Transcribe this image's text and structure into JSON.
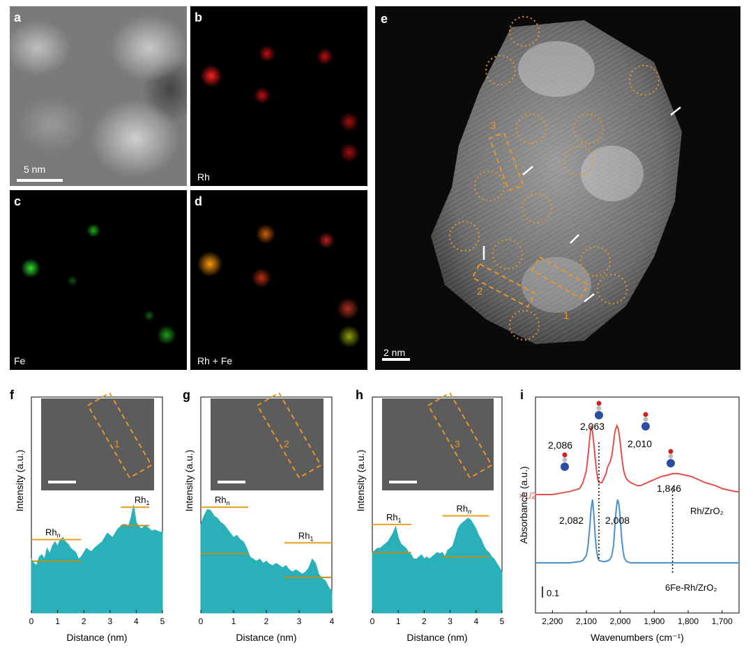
{
  "panels": {
    "a": {
      "label": "a",
      "scale_text": "5 nm"
    },
    "b": {
      "label": "b",
      "caption": "Rh"
    },
    "c": {
      "label": "c",
      "caption": "Fe"
    },
    "d": {
      "label": "d",
      "caption": "Rh + Fe"
    },
    "e": {
      "label": "e",
      "scale_text": "2 nm",
      "region_labels": [
        "1",
        "2",
        "3"
      ]
    },
    "f": {
      "label": "f"
    },
    "g": {
      "label": "g"
    },
    "h": {
      "label": "h"
    },
    "i": {
      "label": "i"
    }
  },
  "colors": {
    "profile_fill": "#2ab0b8",
    "level_line": "#e8a020",
    "dash_orange": "#e8962a",
    "rh_curve": "#e0504a",
    "fe_rh_curve": "#4a8fd0",
    "rh_map": "#e01010",
    "fe_map": "#20c020"
  },
  "chart_data": [
    {
      "id": "f",
      "type": "area",
      "xlabel": "Distance (nm)",
      "ylabel": "Intensity (a.u.)",
      "xlim": [
        0,
        5
      ],
      "xticks": [
        "0",
        "1",
        "2",
        "3",
        "4",
        "5"
      ],
      "inset_region": "1",
      "annotations": [
        {
          "text": "Rh",
          "sub": "n"
        },
        {
          "text": "Rh",
          "sub": "1"
        }
      ],
      "x": [
        0,
        0.1,
        0.2,
        0.3,
        0.4,
        0.5,
        0.6,
        0.7,
        0.8,
        0.9,
        1.0,
        1.1,
        1.2,
        1.3,
        1.4,
        1.5,
        1.6,
        1.7,
        1.8,
        1.9,
        2.0,
        2.1,
        2.2,
        2.3,
        2.4,
        2.5,
        2.6,
        2.7,
        2.8,
        2.9,
        3.0,
        3.1,
        3.2,
        3.3,
        3.4,
        3.5,
        3.6,
        3.7,
        3.8,
        3.9,
        4.0,
        4.1,
        4.2,
        4.3,
        4.4,
        4.5,
        4.6,
        4.7,
        4.8,
        4.9,
        5.0
      ],
      "y": [
        0.5,
        0.46,
        0.44,
        0.52,
        0.54,
        0.5,
        0.6,
        0.55,
        0.62,
        0.66,
        0.62,
        0.68,
        0.7,
        0.66,
        0.64,
        0.6,
        0.58,
        0.56,
        0.5,
        0.52,
        0.56,
        0.6,
        0.58,
        0.57,
        0.6,
        0.62,
        0.64,
        0.66,
        0.7,
        0.74,
        0.72,
        0.7,
        0.74,
        0.78,
        0.8,
        0.82,
        0.82,
        0.8,
        0.88,
        1.0,
        0.84,
        0.8,
        0.78,
        0.8,
        0.8,
        0.78,
        0.76,
        0.77,
        0.76,
        0.75,
        0.75
      ],
      "levels": [
        {
          "x0": 0,
          "x1": 1.9,
          "hi": 0.68,
          "lo": 0.48
        },
        {
          "x0": 3.4,
          "x1": 4.5,
          "hi": 0.98,
          "lo": 0.81
        }
      ]
    },
    {
      "id": "g",
      "type": "area",
      "xlabel": "Distance (nm)",
      "ylabel": "Intensity (a.u.)",
      "xlim": [
        0,
        4
      ],
      "xticks": [
        "0",
        "1",
        "2",
        "3",
        "4"
      ],
      "inset_region": "2",
      "annotations": [
        {
          "text": "Rh",
          "sub": "n"
        },
        {
          "text": "Rh",
          "sub": "1"
        }
      ],
      "x": [
        0,
        0.1,
        0.2,
        0.3,
        0.4,
        0.5,
        0.6,
        0.7,
        0.8,
        0.9,
        1.0,
        1.1,
        1.2,
        1.3,
        1.4,
        1.5,
        1.6,
        1.7,
        1.8,
        1.9,
        2.0,
        2.1,
        2.2,
        2.3,
        2.4,
        2.5,
        2.6,
        2.7,
        2.8,
        2.9,
        3.0,
        3.1,
        3.2,
        3.3,
        3.4,
        3.5,
        3.6,
        3.7,
        3.8,
        3.9,
        4.0
      ],
      "y": [
        0.82,
        0.9,
        0.96,
        0.95,
        0.9,
        0.88,
        0.84,
        0.82,
        0.78,
        0.74,
        0.7,
        0.72,
        0.68,
        0.66,
        0.6,
        0.52,
        0.5,
        0.48,
        0.5,
        0.46,
        0.48,
        0.45,
        0.44,
        0.46,
        0.44,
        0.42,
        0.44,
        0.4,
        0.38,
        0.4,
        0.38,
        0.36,
        0.38,
        0.42,
        0.5,
        0.46,
        0.36,
        0.32,
        0.3,
        0.24,
        0.2
      ],
      "levels": [
        {
          "x0": 0,
          "x1": 1.45,
          "hi": 0.98,
          "lo": 0.55
        },
        {
          "x0": 2.55,
          "x1": 4.0,
          "hi": 0.65,
          "lo": 0.33
        }
      ]
    },
    {
      "id": "h",
      "type": "area",
      "xlabel": "Distance (nm)",
      "ylabel": "Intensity (a.u.)",
      "xlim": [
        0,
        5
      ],
      "xticks": [
        "0",
        "1",
        "2",
        "3",
        "4",
        "5"
      ],
      "inset_region": "3",
      "annotations": [
        {
          "text": "Rh",
          "sub": "1"
        },
        {
          "text": "Rh",
          "sub": "n"
        }
      ],
      "x": [
        0,
        0.1,
        0.2,
        0.3,
        0.4,
        0.5,
        0.6,
        0.7,
        0.8,
        0.9,
        1.0,
        1.1,
        1.2,
        1.3,
        1.4,
        1.5,
        1.6,
        1.7,
        1.8,
        1.9,
        2.0,
        2.1,
        2.2,
        2.3,
        2.4,
        2.5,
        2.6,
        2.7,
        2.8,
        2.9,
        3.0,
        3.1,
        3.2,
        3.3,
        3.4,
        3.5,
        3.6,
        3.7,
        3.8,
        3.9,
        4.0,
        4.1,
        4.2,
        4.3,
        4.4,
        4.5,
        4.6,
        4.7,
        4.8,
        4.9,
        5.0
      ],
      "y": [
        0.56,
        0.58,
        0.6,
        0.6,
        0.62,
        0.64,
        0.66,
        0.7,
        0.74,
        0.8,
        0.7,
        0.64,
        0.62,
        0.6,
        0.56,
        0.54,
        0.5,
        0.5,
        0.52,
        0.54,
        0.5,
        0.52,
        0.5,
        0.52,
        0.54,
        0.56,
        0.55,
        0.56,
        0.52,
        0.58,
        0.6,
        0.62,
        0.7,
        0.78,
        0.82,
        0.84,
        0.86,
        0.88,
        0.86,
        0.82,
        0.78,
        0.72,
        0.68,
        0.62,
        0.58,
        0.56,
        0.52,
        0.5,
        0.46,
        0.42,
        0.38
      ],
      "levels": [
        {
          "x0": 0,
          "x1": 1.5,
          "hi": 0.82,
          "lo": 0.56
        },
        {
          "x0": 2.7,
          "x1": 4.5,
          "hi": 0.9,
          "lo": 0.52
        }
      ]
    },
    {
      "id": "i",
      "type": "line",
      "xlabel": "Wavenumbers (cm⁻¹)",
      "ylabel": "Absorbance (a.u.)",
      "xlim": [
        2250,
        1650
      ],
      "xticks": [
        "2,200",
        "2,100",
        "2,000",
        "1,900",
        "1,800",
        "1,700"
      ],
      "scale_bar": "0.1",
      "multiplier": "×1/2",
      "series": [
        {
          "name": "Rh/ZrO₂",
          "peaks": [
            "2,086",
            "2,063",
            "2,010",
            "1,846"
          ],
          "x": [
            2250,
            2200,
            2150,
            2120,
            2110,
            2100,
            2095,
            2090,
            2086,
            2082,
            2078,
            2074,
            2070,
            2066,
            2063,
            2058,
            2054,
            2050,
            2046,
            2042,
            2038,
            2034,
            2030,
            2025,
            2020,
            2016,
            2010,
            2006,
            2002,
            1998,
            1994,
            1990,
            1985,
            1980,
            1970,
            1960,
            1950,
            1940,
            1930,
            1920,
            1900,
            1880,
            1860,
            1846,
            1830,
            1810,
            1790,
            1770,
            1750,
            1720,
            1700,
            1680,
            1660,
            1650
          ],
          "y": [
            0.0,
            0.0,
            0.01,
            0.02,
            0.04,
            0.08,
            0.13,
            0.19,
            0.23,
            0.21,
            0.17,
            0.12,
            0.08,
            0.05,
            0.04,
            0.04,
            0.04,
            0.05,
            0.06,
            0.07,
            0.09,
            0.1,
            0.11,
            0.13,
            0.17,
            0.21,
            0.23,
            0.22,
            0.19,
            0.15,
            0.11,
            0.08,
            0.06,
            0.05,
            0.04,
            0.035,
            0.03,
            0.03,
            0.035,
            0.04,
            0.05,
            0.06,
            0.065,
            0.07,
            0.07,
            0.065,
            0.06,
            0.05,
            0.04,
            0.03,
            0.02,
            0.015,
            0.01,
            0.01
          ]
        },
        {
          "name": "6Fe-Rh/ZrO₂",
          "peaks": [
            "2,082",
            "2,008"
          ],
          "x": [
            2250,
            2200,
            2150,
            2120,
            2110,
            2100,
            2095,
            2090,
            2086,
            2082,
            2078,
            2074,
            2070,
            2066,
            2063,
            2058,
            2054,
            2050,
            2046,
            2042,
            2038,
            2034,
            2030,
            2025,
            2020,
            2016,
            2012,
            2008,
            2004,
            2000,
            1996,
            1992,
            1988,
            1984,
            1980,
            1970,
            1960,
            1950,
            1900,
            1850,
            1800,
            1750,
            1700,
            1650
          ],
          "y": [
            0.0,
            0.0,
            0.0,
            0.005,
            0.01,
            0.03,
            0.07,
            0.15,
            0.22,
            0.26,
            0.2,
            0.11,
            0.05,
            0.02,
            0.01,
            0.008,
            0.006,
            0.005,
            0.005,
            0.006,
            0.008,
            0.01,
            0.015,
            0.03,
            0.07,
            0.15,
            0.22,
            0.26,
            0.24,
            0.18,
            0.1,
            0.05,
            0.02,
            0.01,
            0.005,
            0.0,
            0.0,
            0.0,
            0.0,
            0.0,
            0.0,
            0.0,
            0.0,
            0.0
          ]
        }
      ]
    }
  ]
}
